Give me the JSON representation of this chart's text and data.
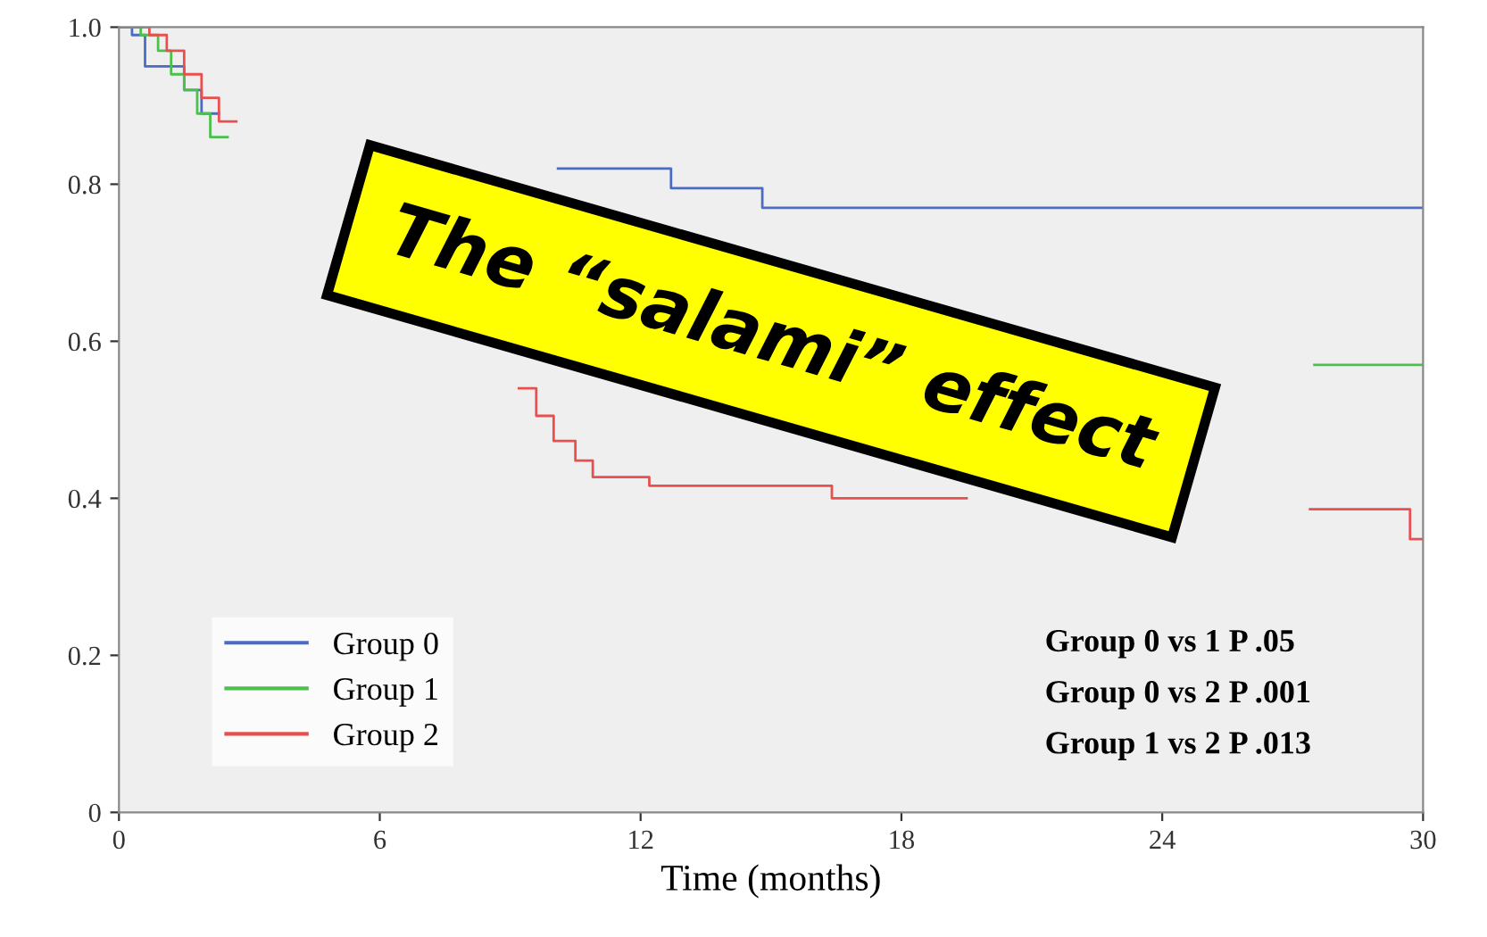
{
  "chart_data": {
    "type": "step",
    "xlabel": "Time (months)",
    "xlim": [
      0,
      30
    ],
    "ylim": [
      0,
      1.0
    ],
    "xticks": [
      0,
      6,
      12,
      18,
      24,
      30
    ],
    "yticks": [
      0,
      0.2,
      0.4,
      0.6,
      0.8,
      {
        "value": 1,
        "label": "1.0"
      }
    ],
    "grid": false,
    "legend": "bottom left",
    "line_style": "solid",
    "series": [
      {
        "name": "Group 0",
        "color": "#4a6cc4",
        "x": [
          0,
          0.3,
          0.6,
          1.2,
          1.5,
          1.9,
          2.3,
          10.1,
          12.7,
          14.8,
          30
        ],
        "values": [
          1.0,
          0.99,
          0.95,
          0.95,
          0.92,
          0.89,
          null,
          0.82,
          0.795,
          0.77,
          0.77
        ]
      },
      {
        "name": "Group 1",
        "color": "#4cc04c",
        "x": [
          0,
          0.5,
          0.9,
          1.2,
          1.5,
          1.8,
          2.1,
          2.5,
          27.5,
          30
        ],
        "values": [
          1.0,
          0.99,
          0.97,
          0.94,
          0.92,
          0.89,
          0.86,
          null,
          0.57,
          0.57
        ]
      },
      {
        "name": "Group 2",
        "color": "#e85050",
        "x": [
          0,
          0.7,
          1.1,
          1.5,
          1.9,
          2.3,
          2.7,
          9.2,
          9.6,
          10.0,
          10.5,
          10.9,
          11.8,
          12.2,
          13.0,
          16.4,
          19.5,
          27.4,
          29.7,
          30
        ],
        "values": [
          1.0,
          0.99,
          0.97,
          0.94,
          0.91,
          0.88,
          null,
          0.54,
          0.505,
          0.473,
          0.448,
          0.427,
          0.427,
          0.416,
          0.416,
          0.4,
          null,
          0.386,
          0.348,
          0.348
        ]
      }
    ],
    "annotations": [
      "Group 0 vs 1 P .05",
      "Group 0 vs 2 P .001",
      "Group 1 vs 2 P .013",
      "The “salami” effect"
    ]
  }
}
